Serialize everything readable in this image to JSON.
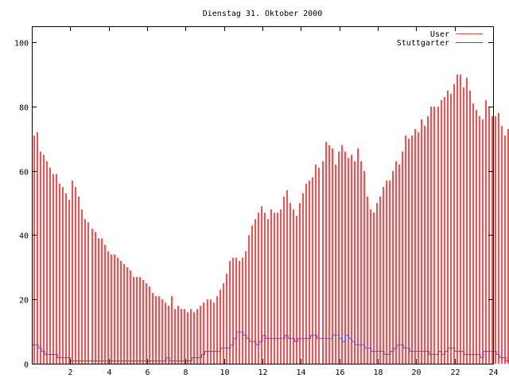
{
  "chart_data": {
    "type": "bar",
    "title": "Dienstag 31. Oktober 2000",
    "xlabel": "",
    "ylabel": "",
    "xlim": [
      0,
      24
    ],
    "ylim": [
      0,
      105
    ],
    "x_ticks": [
      "2",
      "4",
      "6",
      "8",
      "10",
      "12",
      "14",
      "16",
      "18",
      "20",
      "22",
      "24"
    ],
    "y_ticks": [
      "0",
      "20",
      "40",
      "60",
      "80",
      "100"
    ],
    "interval_minutes": 10,
    "legend_position": "top-right",
    "series": [
      {
        "name": "User",
        "style": "impulses",
        "color": "#ff4d4d",
        "values": [
          71,
          72,
          66,
          65,
          63,
          61,
          59,
          59,
          56,
          55,
          53,
          51,
          57,
          55,
          52,
          48,
          45,
          44,
          42,
          41,
          39,
          39,
          37,
          35,
          34,
          34,
          33,
          32,
          31,
          30,
          29,
          27,
          27,
          27,
          26,
          25,
          24,
          22,
          21,
          21,
          20,
          19,
          18,
          21,
          17,
          18,
          17,
          17,
          16,
          17,
          16,
          17,
          18,
          19,
          20,
          20,
          19,
          21,
          23,
          25,
          28,
          32,
          33,
          33,
          32,
          33,
          35,
          40,
          43,
          45,
          47,
          49,
          47,
          45,
          48,
          47,
          47,
          48,
          52,
          54,
          50,
          48,
          46,
          50,
          53,
          56,
          57,
          58,
          62,
          61,
          63,
          69,
          68,
          67,
          62,
          66,
          68,
          66,
          64,
          65,
          63,
          67,
          63,
          60,
          52,
          48,
          47,
          50,
          52,
          55,
          57,
          57,
          60,
          63,
          62,
          66,
          71,
          70,
          71,
          73,
          72,
          76,
          74,
          77,
          80,
          80,
          80,
          82,
          83,
          85,
          84,
          87,
          90,
          90,
          86,
          89,
          85,
          81,
          79,
          77,
          76,
          82,
          80,
          77,
          77,
          78,
          74,
          71,
          73,
          71
        ]
      },
      {
        "name": "Stuttgarter",
        "style": "steps",
        "color": "#4d4dff",
        "values": [
          6,
          6,
          5,
          4,
          3,
          3,
          3,
          3,
          2,
          2,
          2,
          2,
          1,
          1,
          1,
          1,
          1,
          1,
          1,
          1,
          1,
          1,
          1,
          1,
          1,
          1,
          1,
          1,
          1,
          1,
          1,
          1,
          1,
          1,
          1,
          1,
          1,
          1,
          1,
          1,
          1,
          1,
          2,
          1,
          1,
          1,
          1,
          1,
          1,
          1,
          2,
          2,
          2,
          3,
          4,
          4,
          4,
          4,
          4,
          5,
          5,
          5,
          6,
          8,
          10,
          10,
          9,
          8,
          7,
          7,
          6,
          7,
          9,
          8,
          8,
          8,
          8,
          8,
          8,
          9,
          8,
          8,
          7,
          8,
          8,
          8,
          8,
          9,
          9,
          8,
          8,
          8,
          8,
          8,
          9,
          9,
          8,
          7,
          9,
          8,
          7,
          6,
          6,
          6,
          5,
          5,
          4,
          4,
          4,
          4,
          3,
          3,
          4,
          5,
          6,
          6,
          5,
          5,
          4,
          4,
          4,
          4,
          4,
          4,
          3,
          3,
          3,
          4,
          3,
          4,
          5,
          5,
          4,
          4,
          4,
          3,
          3,
          3,
          3,
          3,
          2,
          4,
          4,
          4,
          4,
          3,
          2,
          2,
          1,
          2
        ]
      }
    ]
  }
}
